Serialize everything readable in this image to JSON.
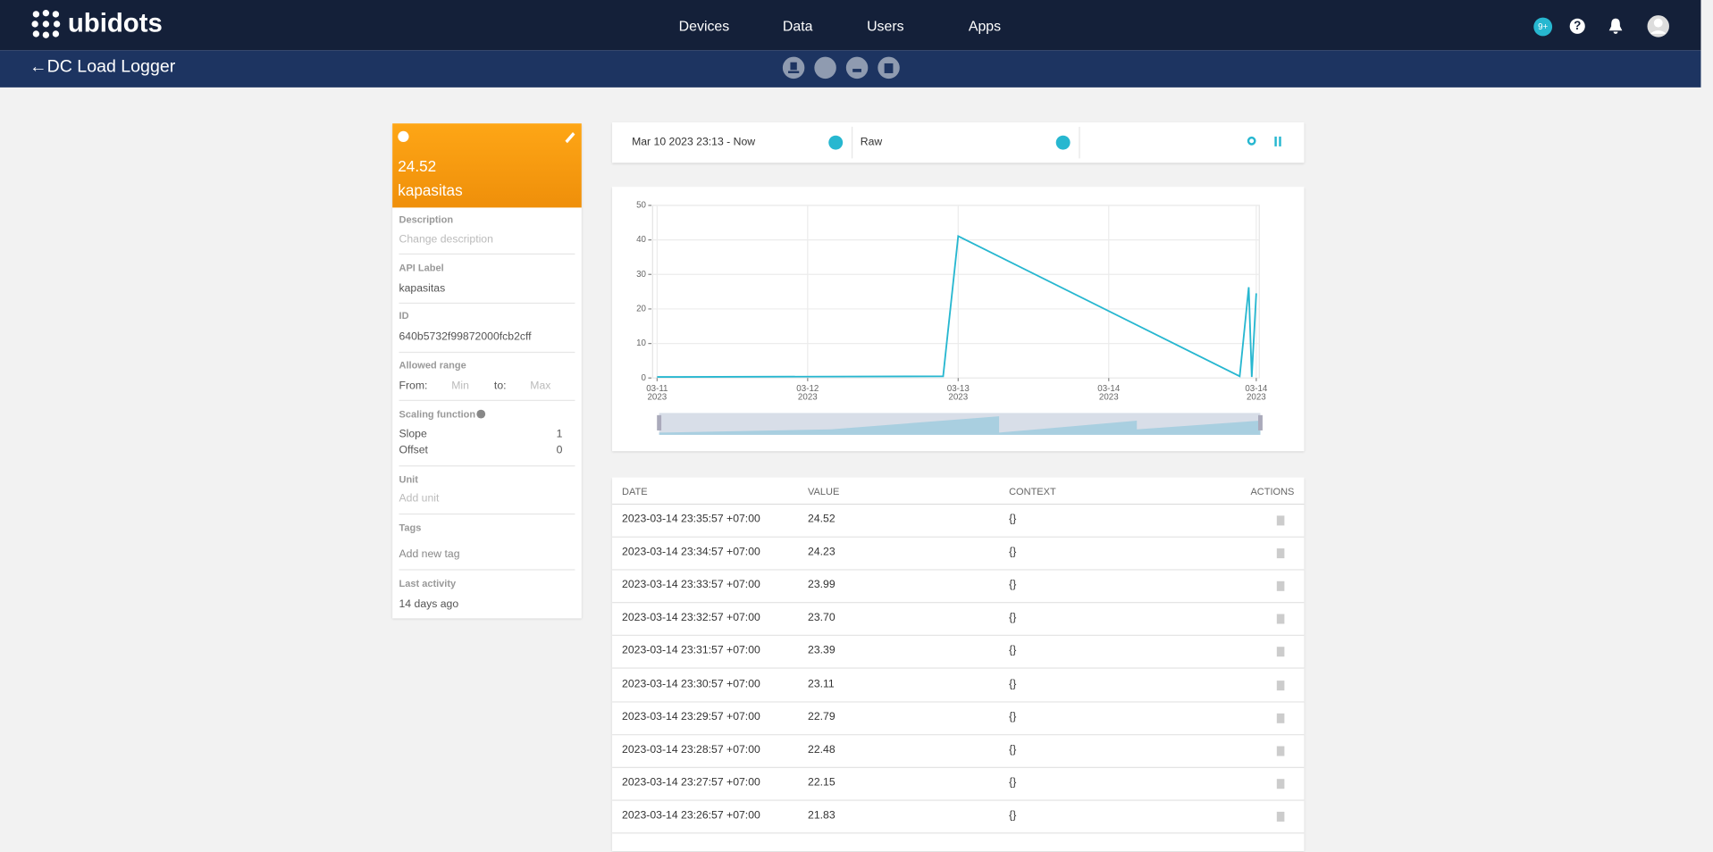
{
  "nav": {
    "logo": "ubidots",
    "items": [
      "Devices",
      "Data",
      "Users",
      "Apps"
    ],
    "badge": "9+"
  },
  "header": {
    "title": "DC Load Logger"
  },
  "variable": {
    "value": "24.52",
    "name": "kapasitas",
    "fields": [
      {
        "label": "Description",
        "value": "Change description"
      },
      {
        "label": "API Label",
        "value": "kapasitas"
      },
      {
        "label": "ID",
        "value": "640b5732f99872000fcb2cff"
      }
    ],
    "range": {
      "label": "Allowed range",
      "from": "From:",
      "min": "Min",
      "to": "to:",
      "max": "Max"
    },
    "scaling": {
      "label": "Scaling function",
      "slope_label": "Slope",
      "slope": "1",
      "offset_label": "Offset",
      "offset": "0"
    },
    "fields2": [
      {
        "label": "Unit",
        "value": "Add unit"
      },
      {
        "label": "Tags",
        "value": "Add new tag"
      },
      {
        "label": "Last activity",
        "value": "14 days ago"
      }
    ]
  },
  "controls": {
    "range": "Mar 10 2023 23:13 - Now",
    "aggregation": "Raw"
  },
  "chart_data": {
    "type": "line",
    "x": [
      11.0,
      12.9,
      13.0,
      14.87,
      14.93,
      14.95,
      14.98
    ],
    "series": [
      {
        "name": "kapasitas",
        "color": "#27b7d0",
        "values": [
          0.3,
          0.5,
          41.1,
          0.5,
          26.3,
          0.3,
          24.52
        ]
      }
    ],
    "xlim": [
      10.97,
      15.0
    ],
    "xticks": [
      {
        "value": 11,
        "label": "03-11\n2023"
      },
      {
        "value": 12,
        "label": "03-12\n2023"
      },
      {
        "value": 13,
        "label": "03-13\n2023"
      },
      {
        "value": 14,
        "label": "03-14\n2023"
      },
      {
        "value": 14.98,
        "label": "03-14\n2023"
      }
    ],
    "ylim": [
      0,
      50
    ],
    "yticks": [
      0,
      10,
      20,
      30,
      40,
      50
    ],
    "grid": true
  },
  "table": {
    "headers": [
      "DATE",
      "VALUE",
      "CONTEXT",
      "ACTIONS"
    ],
    "rows": [
      [
        "2023-03-14 23:35:57 +07:00",
        "24.52",
        "{}"
      ],
      [
        "2023-03-14 23:34:57 +07:00",
        "24.23",
        "{}"
      ],
      [
        "2023-03-14 23:33:57 +07:00",
        "23.99",
        "{}"
      ],
      [
        "2023-03-14 23:32:57 +07:00",
        "23.70",
        "{}"
      ],
      [
        "2023-03-14 23:31:57 +07:00",
        "23.39",
        "{}"
      ],
      [
        "2023-03-14 23:30:57 +07:00",
        "23.11",
        "{}"
      ],
      [
        "2023-03-14 23:29:57 +07:00",
        "22.79",
        "{}"
      ],
      [
        "2023-03-14 23:28:57 +07:00",
        "22.48",
        "{}"
      ],
      [
        "2023-03-14 23:27:57 +07:00",
        "22.15",
        "{}"
      ],
      [
        "2023-03-14 23:26:57 +07:00",
        "21.83",
        "{}"
      ]
    ]
  }
}
